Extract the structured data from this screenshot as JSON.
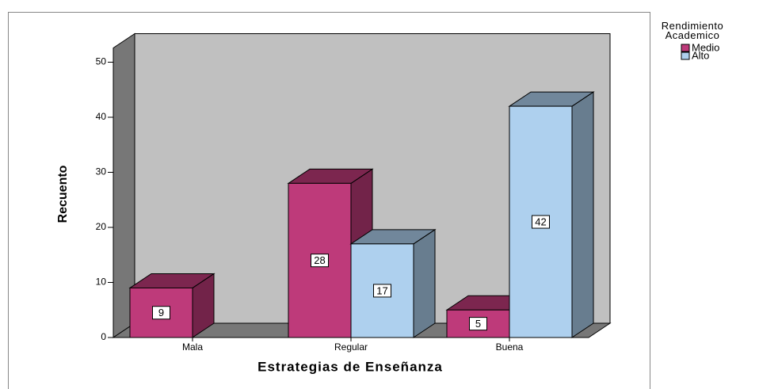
{
  "chart_data": {
    "type": "bar3d",
    "xlabel": "Estrategias de Enseñanza",
    "ylabel": "Recuento",
    "legend_title": "Rendimiento Academico",
    "legend": "top-right",
    "categories": [
      "Mala",
      "Regular",
      "Buena"
    ],
    "series": [
      {
        "name": "Medio",
        "color": "#be3a7a",
        "values": [
          9,
          28,
          5
        ]
      },
      {
        "name": "Alto",
        "color": "#aed0ee",
        "values": [
          null,
          17,
          42
        ]
      }
    ],
    "ylim": [
      0,
      50
    ],
    "yticks": [
      0,
      10,
      20,
      30,
      40,
      50
    ]
  }
}
